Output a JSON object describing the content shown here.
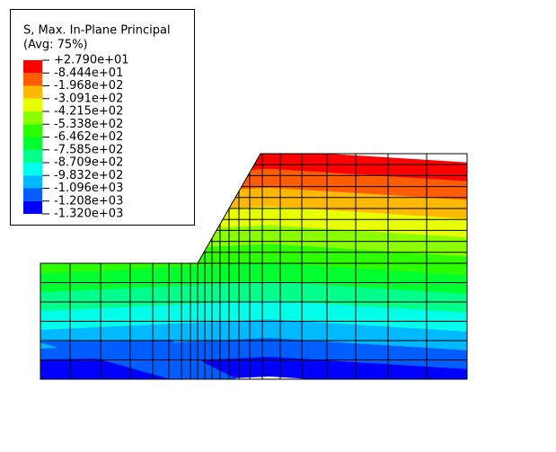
{
  "legend": {
    "title": [
      "S, Max. In-Plane Principal",
      "(Avg: 75%)"
    ],
    "labels": [
      "+2.790e+01",
      "-8.444e+01",
      "-1.968e+02",
      "-3.091e+02",
      "-4.215e+02",
      "-5.338e+02",
      "-6.462e+02",
      "-7.585e+02",
      "-8.709e+02",
      "-9.832e+02",
      "-1.096e+03",
      "-1.208e+03",
      "-1.320e+03"
    ],
    "colors": [
      "#ff0000",
      "#ff5d00",
      "#ffb900",
      "#e8ff00",
      "#8bff00",
      "#2eff00",
      "#00ff2e",
      "#00ff8b",
      "#00ffe8",
      "#00b9ff",
      "#005dff",
      "#0000ff"
    ]
  }
}
